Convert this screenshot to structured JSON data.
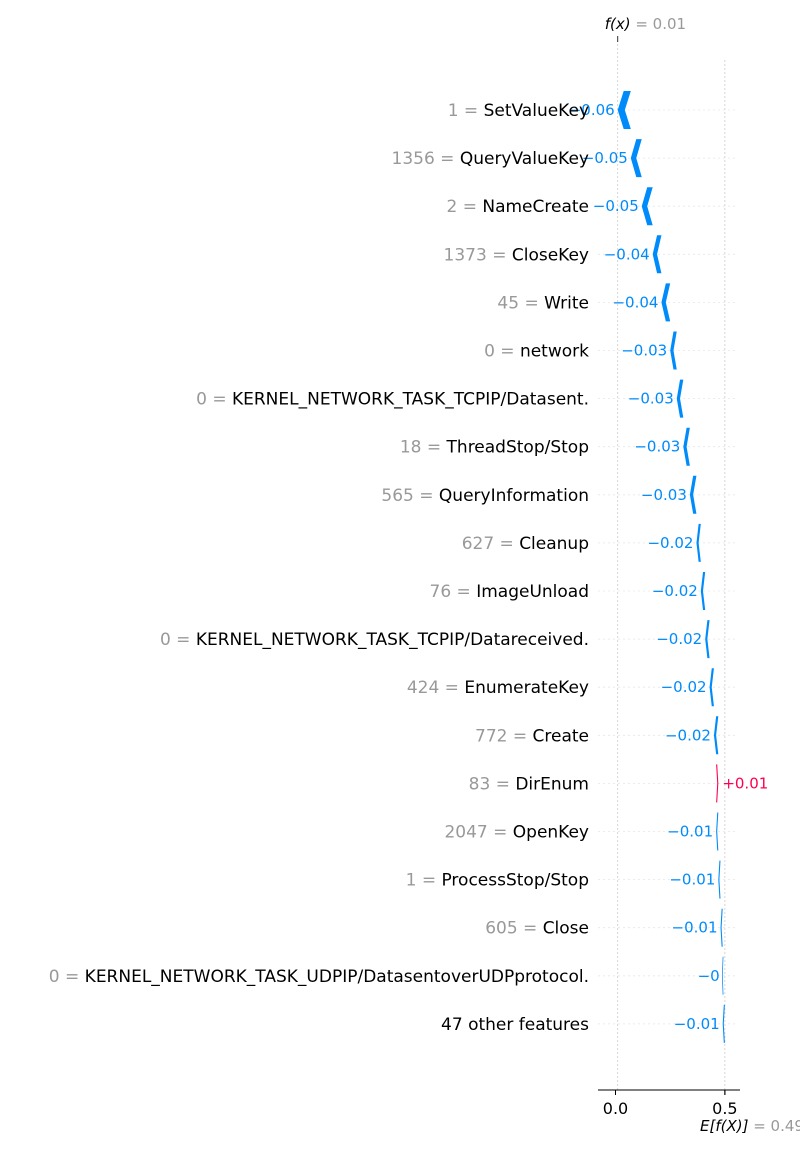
{
  "chart_data": {
    "type": "waterfall",
    "fx_label": "f(x)",
    "fx_value": "= 0.01",
    "base_label": "E[f(X)]",
    "base_value": "= 0.49",
    "xlim": [
      -0.08,
      0.56
    ],
    "x_ticks": [
      {
        "value": 0.0,
        "label": "0.0"
      },
      {
        "value": 0.5,
        "label": "0.5"
      }
    ],
    "features": [
      {
        "value_text": "1",
        "name": "SetValueKey",
        "contribution": -0.06,
        "label": "−0.06"
      },
      {
        "value_text": "1356",
        "name": "QueryValueKey",
        "contribution": -0.05,
        "label": "−0.05"
      },
      {
        "value_text": "2",
        "name": "NameCreate",
        "contribution": -0.05,
        "label": "−0.05"
      },
      {
        "value_text": "1373",
        "name": "CloseKey",
        "contribution": -0.04,
        "label": "−0.04"
      },
      {
        "value_text": "45",
        "name": "Write",
        "contribution": -0.04,
        "label": "−0.04"
      },
      {
        "value_text": "0",
        "name": "network",
        "contribution": -0.03,
        "label": "−0.03"
      },
      {
        "value_text": "0",
        "name": "KERNEL_NETWORK_TASK_TCPIP/Datasent.",
        "contribution": -0.03,
        "label": "−0.03"
      },
      {
        "value_text": "18",
        "name": "ThreadStop/Stop",
        "contribution": -0.03,
        "label": "−0.03"
      },
      {
        "value_text": "565",
        "name": "QueryInformation",
        "contribution": -0.03,
        "label": "−0.03"
      },
      {
        "value_text": "627",
        "name": "Cleanup",
        "contribution": -0.02,
        "label": "−0.02"
      },
      {
        "value_text": "76",
        "name": "ImageUnload",
        "contribution": -0.02,
        "label": "−0.02"
      },
      {
        "value_text": "0",
        "name": "KERNEL_NETWORK_TASK_TCPIP/Datareceived.",
        "contribution": -0.02,
        "label": "−0.02"
      },
      {
        "value_text": "424",
        "name": "EnumerateKey",
        "contribution": -0.02,
        "label": "−0.02"
      },
      {
        "value_text": "772",
        "name": "Create",
        "contribution": -0.02,
        "label": "−0.02"
      },
      {
        "value_text": "83",
        "name": "DirEnum",
        "contribution": 0.01,
        "label": "+0.01"
      },
      {
        "value_text": "2047",
        "name": "OpenKey",
        "contribution": -0.01,
        "label": "−0.01"
      },
      {
        "value_text": "1",
        "name": "ProcessStop/Stop",
        "contribution": -0.01,
        "label": "−0.01"
      },
      {
        "value_text": "605",
        "name": "Close",
        "contribution": -0.01,
        "label": "−0.01"
      },
      {
        "value_text": "0",
        "name": "KERNEL_NETWORK_TASK_UDPIP/DatasentoverUDPprotocol.",
        "contribution": -0.0,
        "label": "−0"
      },
      {
        "value_text": "",
        "name": "47 other features",
        "contribution": -0.01,
        "label": "−0.01"
      }
    ],
    "colors": {
      "negative": "#008bfb",
      "positive": "#ff0051",
      "muted": "#999999",
      "grid": "#cccccc"
    }
  }
}
